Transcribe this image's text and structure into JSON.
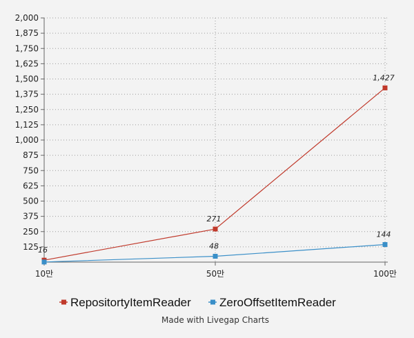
{
  "chart_data": {
    "type": "line",
    "categories": [
      "10만",
      "50만",
      "100만"
    ],
    "ylim": [
      0,
      2000
    ],
    "yticks": [
      125,
      250,
      375,
      500,
      625,
      750,
      875,
      1000,
      1125,
      1250,
      1375,
      1500,
      1625,
      1750,
      1875,
      2000
    ],
    "ytick_labels": [
      "125",
      "250",
      "375",
      "500",
      "625",
      "750",
      "875",
      "1,000",
      "1,125",
      "1,250",
      "1,375",
      "1,500",
      "1,625",
      "1,750",
      "1,875",
      "2,000"
    ],
    "grid": true,
    "legend_position": "bottom",
    "series": [
      {
        "name": "RepositortyItemReader",
        "values": [
          16,
          271,
          1427
        ],
        "labels": [
          "16",
          "271",
          "1,427"
        ],
        "color": "#c0392b"
      },
      {
        "name": "ZeroOffsetItemReader",
        "values": [
          1,
          48,
          144
        ],
        "labels": [
          "",
          "48",
          "144"
        ],
        "color": "#3a8fc8"
      }
    ]
  },
  "credit": "Made with Livegap Charts"
}
